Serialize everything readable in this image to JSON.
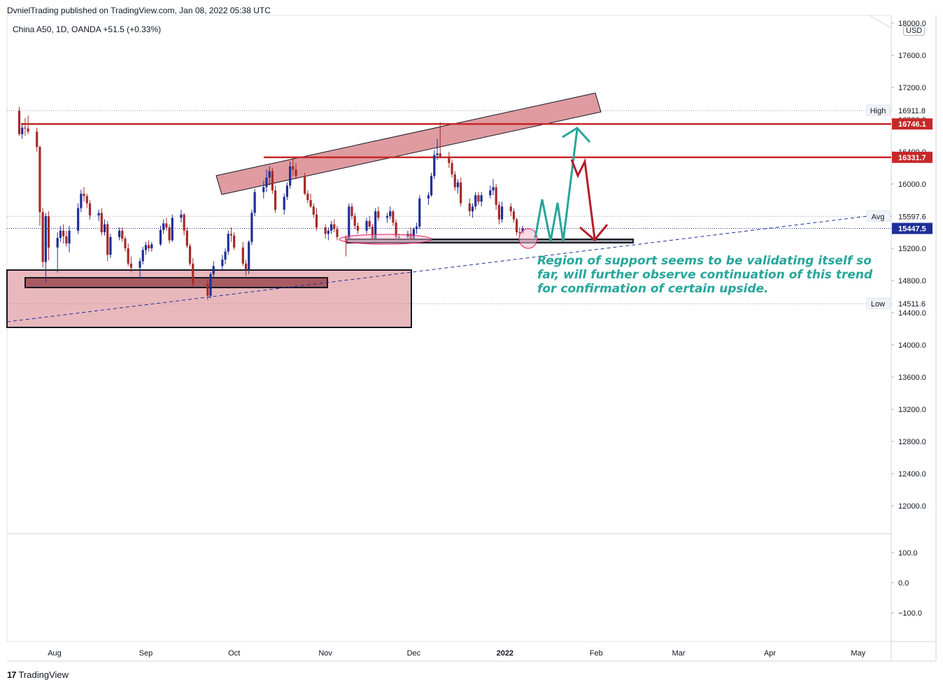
{
  "header": {
    "publisher_line": "DvnielTrading published on TradingView.com, Jan 08, 2022 05:38 UTC",
    "symbol_line": "China A50, 1D, OANDA  +51.5 (+0.33%)",
    "currency": "USD"
  },
  "footer": {
    "brand": "TradingView",
    "brand_mark": "17"
  },
  "annotation": {
    "lines": [
      "Region of support seems to be validating itself so",
      "far, will further observe continuation of this trend",
      "for confirmation of certain upside."
    ],
    "color": "#26a69a"
  },
  "colors": {
    "up": "#1e2f97",
    "down": "#a52a2a",
    "level_red": "#c62828",
    "zone_fill": "#d9898f",
    "price_badge": "#1e2f97",
    "arrow_up": "#26a69a",
    "arrow_down": "#b71c2c"
  },
  "chart_data": {
    "type": "candlestick",
    "symbol": "China A50",
    "interval": "1D",
    "source": "OANDA",
    "change": "+51.5 (+0.33%)",
    "price_ticks": [
      18000,
      17600,
      17200,
      16800,
      16400,
      16000,
      15600,
      15200,
      14800,
      14400,
      14000,
      13600,
      13200,
      12800,
      12400,
      12000
    ],
    "indicator_ticks": [
      100.0,
      0.0,
      -100.0
    ],
    "indicator_tick_labels": [
      "100.0",
      "0.0",
      "−100.0"
    ],
    "x_labels": [
      "Aug",
      "Sep",
      "Oct",
      "Nov",
      "Dec",
      "2022",
      "Feb",
      "Mar",
      "Apr",
      "May"
    ],
    "x_label_dates": [
      "2021-08-01",
      "2021-09-01",
      "2021-10-01",
      "2021-11-01",
      "2021-12-01",
      "2022-01-01",
      "2022-02-01",
      "2022-03-01",
      "2022-04-01",
      "2022-05-01"
    ],
    "ylim": [
      11700,
      18000
    ],
    "levels": {
      "high": {
        "label": "High",
        "value": 16911.8
      },
      "avg": {
        "label": "Avg",
        "value": 15597.6
      },
      "low": {
        "label": "Low",
        "value": 14511.6
      },
      "resistance_1": {
        "value": 16746.1
      },
      "resistance_2": {
        "value": 16331.7
      },
      "last": {
        "value": 15447.5
      }
    },
    "candles": [
      {
        "d": "2021-07-20",
        "o": 16910,
        "h": 16960,
        "l": 16600,
        "c": 16620
      },
      {
        "d": "2021-07-21",
        "o": 16620,
        "h": 16750,
        "l": 16560,
        "c": 16700
      },
      {
        "d": "2021-07-22",
        "o": 16700,
        "h": 16820,
        "l": 16600,
        "c": 16690
      },
      {
        "d": "2021-07-23",
        "o": 16690,
        "h": 16850,
        "l": 16620,
        "c": 16650
      },
      {
        "d": "2021-07-26",
        "o": 16650,
        "h": 16700,
        "l": 16400,
        "c": 16460
      },
      {
        "d": "2021-07-27",
        "o": 16460,
        "h": 16480,
        "l": 15480,
        "c": 15650
      },
      {
        "d": "2021-07-28",
        "o": 15650,
        "h": 15700,
        "l": 14960,
        "c": 15030
      },
      {
        "d": "2021-07-29",
        "o": 15030,
        "h": 15640,
        "l": 14780,
        "c": 15600
      },
      {
        "d": "2021-07-30",
        "o": 15600,
        "h": 15660,
        "l": 15050,
        "c": 15210
      },
      {
        "d": "2021-08-02",
        "o": 15210,
        "h": 15400,
        "l": 14900,
        "c": 15330
      },
      {
        "d": "2021-08-03",
        "o": 15330,
        "h": 15480,
        "l": 15280,
        "c": 15420
      },
      {
        "d": "2021-08-04",
        "o": 15420,
        "h": 15500,
        "l": 15260,
        "c": 15350
      },
      {
        "d": "2021-08-05",
        "o": 15350,
        "h": 15420,
        "l": 15220,
        "c": 15260
      },
      {
        "d": "2021-08-06",
        "o": 15260,
        "h": 15480,
        "l": 15150,
        "c": 15420
      },
      {
        "d": "2021-08-09",
        "o": 15420,
        "h": 15760,
        "l": 15380,
        "c": 15700
      },
      {
        "d": "2021-08-10",
        "o": 15700,
        "h": 15930,
        "l": 15650,
        "c": 15880
      },
      {
        "d": "2021-08-11",
        "o": 15880,
        "h": 15960,
        "l": 15780,
        "c": 15850
      },
      {
        "d": "2021-08-12",
        "o": 15850,
        "h": 15880,
        "l": 15700,
        "c": 15760
      },
      {
        "d": "2021-08-13",
        "o": 15760,
        "h": 15800,
        "l": 15560,
        "c": 15610
      },
      {
        "d": "2021-08-16",
        "o": 15610,
        "h": 15680,
        "l": 15540,
        "c": 15640
      },
      {
        "d": "2021-08-17",
        "o": 15640,
        "h": 15700,
        "l": 15360,
        "c": 15400
      },
      {
        "d": "2021-08-18",
        "o": 15400,
        "h": 15560,
        "l": 15360,
        "c": 15500
      },
      {
        "d": "2021-08-19",
        "o": 15500,
        "h": 15540,
        "l": 15040,
        "c": 15120
      },
      {
        "d": "2021-08-20",
        "o": 15120,
        "h": 15380,
        "l": 15080,
        "c": 15340
      },
      {
        "d": "2021-08-23",
        "o": 15340,
        "h": 15460,
        "l": 15300,
        "c": 15420
      },
      {
        "d": "2021-08-24",
        "o": 15420,
        "h": 15460,
        "l": 15280,
        "c": 15320
      },
      {
        "d": "2021-08-25",
        "o": 15320,
        "h": 15350,
        "l": 15160,
        "c": 15200
      },
      {
        "d": "2021-08-26",
        "o": 15200,
        "h": 15260,
        "l": 14980,
        "c": 15010
      },
      {
        "d": "2021-08-27",
        "o": 15010,
        "h": 15100,
        "l": 14900,
        "c": 14960
      },
      {
        "d": "2021-08-30",
        "o": 14960,
        "h": 15080,
        "l": 14820,
        "c": 15040
      },
      {
        "d": "2021-08-31",
        "o": 15040,
        "h": 15220,
        "l": 15000,
        "c": 15180
      },
      {
        "d": "2021-09-01",
        "o": 15180,
        "h": 15280,
        "l": 15120,
        "c": 15240
      },
      {
        "d": "2021-09-02",
        "o": 15240,
        "h": 15300,
        "l": 15160,
        "c": 15200
      },
      {
        "d": "2021-09-03",
        "o": 15200,
        "h": 15280,
        "l": 15160,
        "c": 15250
      },
      {
        "d": "2021-09-06",
        "o": 15250,
        "h": 15480,
        "l": 15230,
        "c": 15430
      },
      {
        "d": "2021-09-07",
        "o": 15430,
        "h": 15560,
        "l": 15380,
        "c": 15510
      },
      {
        "d": "2021-09-08",
        "o": 15510,
        "h": 15580,
        "l": 15420,
        "c": 15460
      },
      {
        "d": "2021-09-09",
        "o": 15460,
        "h": 15500,
        "l": 15260,
        "c": 15300
      },
      {
        "d": "2021-09-10",
        "o": 15300,
        "h": 15620,
        "l": 15280,
        "c": 15580
      },
      {
        "d": "2021-09-13",
        "o": 15580,
        "h": 15680,
        "l": 15520,
        "c": 15620
      },
      {
        "d": "2021-09-14",
        "o": 15620,
        "h": 15640,
        "l": 15360,
        "c": 15420
      },
      {
        "d": "2021-09-15",
        "o": 15420,
        "h": 15460,
        "l": 15200,
        "c": 15230
      },
      {
        "d": "2021-09-16",
        "o": 15230,
        "h": 15260,
        "l": 14980,
        "c": 15010
      },
      {
        "d": "2021-09-17",
        "o": 15010,
        "h": 15080,
        "l": 14720,
        "c": 14760
      },
      {
        "d": "2021-09-22",
        "o": 14760,
        "h": 14820,
        "l": 14560,
        "c": 14610
      },
      {
        "d": "2021-09-23",
        "o": 14610,
        "h": 14900,
        "l": 14580,
        "c": 14880
      },
      {
        "d": "2021-09-24",
        "o": 14880,
        "h": 15040,
        "l": 14820,
        "c": 14980
      },
      {
        "d": "2021-09-27",
        "o": 14980,
        "h": 15120,
        "l": 14920,
        "c": 15060
      },
      {
        "d": "2021-09-28",
        "o": 15060,
        "h": 15200,
        "l": 15000,
        "c": 15160
      },
      {
        "d": "2021-09-29",
        "o": 15160,
        "h": 15420,
        "l": 15120,
        "c": 15380
      },
      {
        "d": "2021-09-30",
        "o": 15380,
        "h": 15460,
        "l": 15280,
        "c": 15360
      },
      {
        "d": "2021-10-01",
        "o": 15360,
        "h": 15400,
        "l": 15180,
        "c": 15210
      },
      {
        "d": "2021-10-04",
        "o": 15210,
        "h": 15280,
        "l": 14980,
        "c": 15010
      },
      {
        "d": "2021-10-05",
        "o": 15010,
        "h": 15060,
        "l": 14860,
        "c": 14940
      },
      {
        "d": "2021-10-06",
        "o": 14940,
        "h": 15300,
        "l": 14880,
        "c": 15280
      },
      {
        "d": "2021-10-07",
        "o": 15280,
        "h": 15680,
        "l": 15240,
        "c": 15640
      },
      {
        "d": "2021-10-08",
        "o": 15640,
        "h": 15940,
        "l": 15600,
        "c": 15900
      },
      {
        "d": "2021-10-11",
        "o": 15900,
        "h": 16040,
        "l": 15820,
        "c": 15960
      },
      {
        "d": "2021-10-12",
        "o": 15960,
        "h": 16180,
        "l": 15900,
        "c": 16080
      },
      {
        "d": "2021-10-13",
        "o": 16080,
        "h": 16220,
        "l": 15980,
        "c": 16160
      },
      {
        "d": "2021-10-14",
        "o": 16160,
        "h": 16200,
        "l": 15880,
        "c": 15920
      },
      {
        "d": "2021-10-15",
        "o": 15920,
        "h": 15980,
        "l": 15640,
        "c": 15680
      },
      {
        "d": "2021-10-18",
        "o": 15680,
        "h": 15880,
        "l": 15620,
        "c": 15840
      },
      {
        "d": "2021-10-19",
        "o": 15840,
        "h": 16020,
        "l": 15800,
        "c": 15980
      },
      {
        "d": "2021-10-20",
        "o": 15980,
        "h": 16280,
        "l": 15940,
        "c": 16220
      },
      {
        "d": "2021-10-21",
        "o": 16220,
        "h": 16340,
        "l": 16100,
        "c": 16180
      },
      {
        "d": "2021-10-22",
        "o": 16180,
        "h": 16260,
        "l": 16060,
        "c": 16100
      },
      {
        "d": "2021-10-25",
        "o": 16100,
        "h": 16140,
        "l": 15860,
        "c": 15880
      },
      {
        "d": "2021-10-26",
        "o": 15880,
        "h": 15920,
        "l": 15760,
        "c": 15800
      },
      {
        "d": "2021-10-27",
        "o": 15800,
        "h": 15880,
        "l": 15700,
        "c": 15720
      },
      {
        "d": "2021-10-28",
        "o": 15720,
        "h": 15760,
        "l": 15580,
        "c": 15620
      },
      {
        "d": "2021-10-29",
        "o": 15620,
        "h": 15700,
        "l": 15420,
        "c": 15460
      },
      {
        "d": "2021-11-01",
        "o": 15460,
        "h": 15500,
        "l": 15320,
        "c": 15380
      },
      {
        "d": "2021-11-02",
        "o": 15380,
        "h": 15460,
        "l": 15300,
        "c": 15420
      },
      {
        "d": "2021-11-03",
        "o": 15420,
        "h": 15540,
        "l": 15380,
        "c": 15500
      },
      {
        "d": "2021-11-04",
        "o": 15500,
        "h": 15560,
        "l": 15400,
        "c": 15440
      },
      {
        "d": "2021-11-05",
        "o": 15440,
        "h": 15480,
        "l": 15300,
        "c": 15340
      },
      {
        "d": "2021-11-08",
        "o": 15340,
        "h": 15360,
        "l": 15100,
        "c": 15280
      },
      {
        "d": "2021-11-09",
        "o": 15280,
        "h": 15760,
        "l": 15260,
        "c": 15720
      },
      {
        "d": "2021-11-10",
        "o": 15720,
        "h": 15760,
        "l": 15560,
        "c": 15600
      },
      {
        "d": "2021-11-11",
        "o": 15600,
        "h": 15640,
        "l": 15440,
        "c": 15480
      },
      {
        "d": "2021-11-12",
        "o": 15480,
        "h": 15520,
        "l": 15380,
        "c": 15420
      },
      {
        "d": "2021-11-15",
        "o": 15420,
        "h": 15580,
        "l": 15380,
        "c": 15540
      },
      {
        "d": "2021-11-16",
        "o": 15540,
        "h": 15600,
        "l": 15440,
        "c": 15470
      },
      {
        "d": "2021-11-17",
        "o": 15470,
        "h": 15500,
        "l": 15260,
        "c": 15300
      },
      {
        "d": "2021-11-18",
        "o": 15300,
        "h": 15700,
        "l": 15280,
        "c": 15660
      },
      {
        "d": "2021-11-19",
        "o": 15660,
        "h": 15720,
        "l": 15540,
        "c": 15580
      },
      {
        "d": "2021-11-22",
        "o": 15580,
        "h": 15640,
        "l": 15520,
        "c": 15600
      },
      {
        "d": "2021-11-23",
        "o": 15600,
        "h": 15720,
        "l": 15560,
        "c": 15660
      },
      {
        "d": "2021-11-24",
        "o": 15660,
        "h": 15680,
        "l": 15480,
        "c": 15520
      },
      {
        "d": "2021-11-25",
        "o": 15520,
        "h": 15560,
        "l": 15300,
        "c": 15340
      },
      {
        "d": "2021-11-26",
        "o": 15340,
        "h": 15380,
        "l": 15280,
        "c": 15340
      },
      {
        "d": "2021-11-29",
        "o": 15340,
        "h": 15420,
        "l": 15280,
        "c": 15380
      },
      {
        "d": "2021-11-30",
        "o": 15380,
        "h": 15460,
        "l": 15260,
        "c": 15290
      },
      {
        "d": "2021-12-01",
        "o": 15290,
        "h": 15460,
        "l": 15280,
        "c": 15440
      },
      {
        "d": "2021-12-02",
        "o": 15440,
        "h": 15520,
        "l": 15380,
        "c": 15470
      },
      {
        "d": "2021-12-03",
        "o": 15470,
        "h": 15860,
        "l": 15440,
        "c": 15820
      },
      {
        "d": "2021-12-06",
        "o": 15820,
        "h": 15900,
        "l": 15740,
        "c": 15860
      },
      {
        "d": "2021-12-07",
        "o": 15860,
        "h": 16140,
        "l": 15840,
        "c": 16100
      },
      {
        "d": "2021-12-08",
        "o": 16100,
        "h": 16420,
        "l": 16060,
        "c": 16360
      },
      {
        "d": "2021-12-09",
        "o": 16360,
        "h": 16560,
        "l": 16300,
        "c": 16380
      },
      {
        "d": "2021-12-10",
        "o": 16380,
        "h": 16770,
        "l": 16320,
        "c": 16340
      },
      {
        "d": "2021-12-13",
        "o": 16340,
        "h": 16400,
        "l": 16200,
        "c": 16260
      },
      {
        "d": "2021-12-14",
        "o": 16260,
        "h": 16300,
        "l": 16080,
        "c": 16120
      },
      {
        "d": "2021-12-15",
        "o": 16120,
        "h": 16160,
        "l": 15920,
        "c": 15960
      },
      {
        "d": "2021-12-16",
        "o": 15960,
        "h": 16060,
        "l": 15880,
        "c": 16020
      },
      {
        "d": "2021-12-17",
        "o": 16020,
        "h": 16080,
        "l": 15720,
        "c": 15760
      },
      {
        "d": "2021-12-20",
        "o": 15760,
        "h": 15820,
        "l": 15600,
        "c": 15660
      },
      {
        "d": "2021-12-21",
        "o": 15660,
        "h": 15760,
        "l": 15580,
        "c": 15720
      },
      {
        "d": "2021-12-22",
        "o": 15720,
        "h": 15900,
        "l": 15680,
        "c": 15860
      },
      {
        "d": "2021-12-23",
        "o": 15860,
        "h": 15900,
        "l": 15740,
        "c": 15780
      },
      {
        "d": "2021-12-24",
        "o": 15780,
        "h": 15900,
        "l": 15720,
        "c": 15860
      },
      {
        "d": "2021-12-27",
        "o": 15860,
        "h": 15980,
        "l": 15820,
        "c": 15920
      },
      {
        "d": "2021-12-28",
        "o": 15920,
        "h": 16060,
        "l": 15860,
        "c": 15960
      },
      {
        "d": "2021-12-29",
        "o": 15960,
        "h": 16000,
        "l": 15680,
        "c": 15740
      },
      {
        "d": "2021-12-30",
        "o": 15740,
        "h": 15780,
        "l": 15500,
        "c": 15560
      },
      {
        "d": "2021-12-31",
        "o": 15560,
        "h": 15780,
        "l": 15520,
        "c": 15720
      },
      {
        "d": "2022-01-03",
        "o": 15720,
        "h": 15760,
        "l": 15600,
        "c": 15660
      },
      {
        "d": "2022-01-04",
        "o": 15660,
        "h": 15700,
        "l": 15520,
        "c": 15560
      },
      {
        "d": "2022-01-05",
        "o": 15560,
        "h": 15580,
        "l": 15360,
        "c": 15400
      },
      {
        "d": "2022-01-06",
        "o": 15400,
        "h": 15460,
        "l": 15340,
        "c": 15396
      },
      {
        "d": "2022-01-07",
        "o": 15396,
        "h": 15480,
        "l": 15380,
        "c": 15447.5
      }
    ]
  }
}
